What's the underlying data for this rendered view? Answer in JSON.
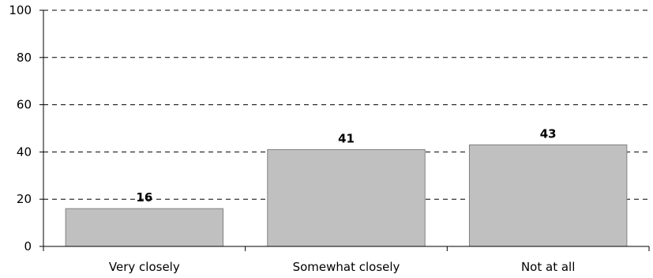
{
  "chart_data": {
    "type": "bar",
    "categories": [
      "Very closely",
      "Somewhat closely",
      "Not at all"
    ],
    "values": [
      16,
      41,
      43
    ],
    "data_labels": [
      "16",
      "41",
      "43"
    ],
    "title": "",
    "xlabel": "",
    "ylabel": "",
    "ylim": [
      0,
      100
    ],
    "yticks": [
      0,
      20,
      40,
      60,
      80,
      100
    ],
    "ytick_labels": [
      "0",
      "20",
      "40",
      "60",
      "80",
      "100"
    ],
    "grid": true,
    "grid_style": "dashed",
    "legend": "none",
    "bar_color": "#c0c0c0",
    "bar_edge_color": "#808080"
  }
}
